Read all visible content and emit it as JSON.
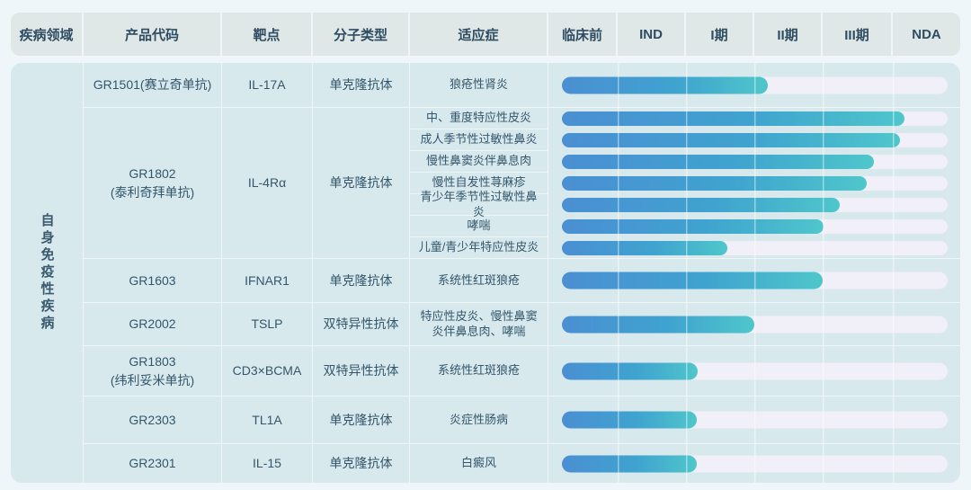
{
  "sidebar_label": "自身免疫性疾病",
  "header": {
    "columns": [
      "疾病领域",
      "产品代码",
      "靶点",
      "分子类型",
      "适应症",
      "临床前",
      "IND",
      "I期",
      "II期",
      "III期",
      "NDA"
    ]
  },
  "colors": {
    "header_bg": "#dfe7e7",
    "panel_bg": "#d8e9ee",
    "bar_gradient_start": "#4a8fd3",
    "bar_gradient_end": "#4fc6cb",
    "track": "#f1eff7",
    "text": "#2e4d63"
  },
  "chart_data": {
    "type": "gantt",
    "title": "自身免疫性疾病产品管线",
    "phases": [
      "临床前",
      "IND",
      "I期",
      "II期",
      "III期",
      "NDA"
    ],
    "legend_position": "none",
    "grid": true,
    "rows": [
      {
        "product": "GR1501(赛立奇单抗)",
        "target": "IL-17A",
        "molecule": "单克隆抗体",
        "indications": [
          {
            "name": "狼疮性肾炎",
            "stage": "II期",
            "progress": 0.533
          }
        ]
      },
      {
        "product": "GR1802",
        "product_sub": "(泰利奇拜单抗)",
        "target": "IL-4Rα",
        "molecule": "单克隆抗体",
        "indications": [
          {
            "name": "中、重度特应性皮炎",
            "stage": "NDA",
            "progress": 0.888
          },
          {
            "name": "成人季节性过敏性鼻炎",
            "stage": "NDA",
            "progress": 0.876
          },
          {
            "name": "慢性鼻窦炎伴鼻息肉",
            "stage": "III期",
            "progress": 0.808
          },
          {
            "name": "慢性自发性荨麻疹",
            "stage": "III期",
            "progress": 0.79
          },
          {
            "name": "青少年季节性过敏性鼻炎",
            "stage": "III期",
            "progress": 0.72
          },
          {
            "name": "哮喘",
            "stage": "III期",
            "progress": 0.678
          },
          {
            "name": "儿童/青少年特应性皮炎",
            "stage": "I期",
            "progress": 0.428
          }
        ]
      },
      {
        "product": "GR1603",
        "target": "IFNAR1",
        "molecule": "单克隆抗体",
        "indications": [
          {
            "name": "系统性红斑狼疮",
            "stage": "II期",
            "progress": 0.675
          }
        ]
      },
      {
        "product": "GR2002",
        "target": "TSLP",
        "molecule": "双特异性抗体",
        "indications": [
          {
            "name": "特应性皮炎、慢性鼻窦炎伴鼻息肉、哮喘",
            "stage": "I期",
            "progress": 0.498
          }
        ]
      },
      {
        "product": "GR1803",
        "product_sub": "(纬利妥米单抗)",
        "target": "CD3×BCMA",
        "molecule": "双特异性抗体",
        "indications": [
          {
            "name": "系统性红斑狼疮",
            "stage": "I期",
            "progress": 0.353
          }
        ]
      },
      {
        "product": "GR2303",
        "target": "TL1A",
        "molecule": "单克隆抗体",
        "indications": [
          {
            "name": "炎症性肠病",
            "stage": "I期",
            "progress": 0.35
          }
        ]
      },
      {
        "product": "GR2301",
        "target": "IL-15",
        "molecule": "单克隆抗体",
        "indications": [
          {
            "name": "白癜风",
            "stage": "I期",
            "progress": 0.35
          }
        ]
      }
    ]
  }
}
